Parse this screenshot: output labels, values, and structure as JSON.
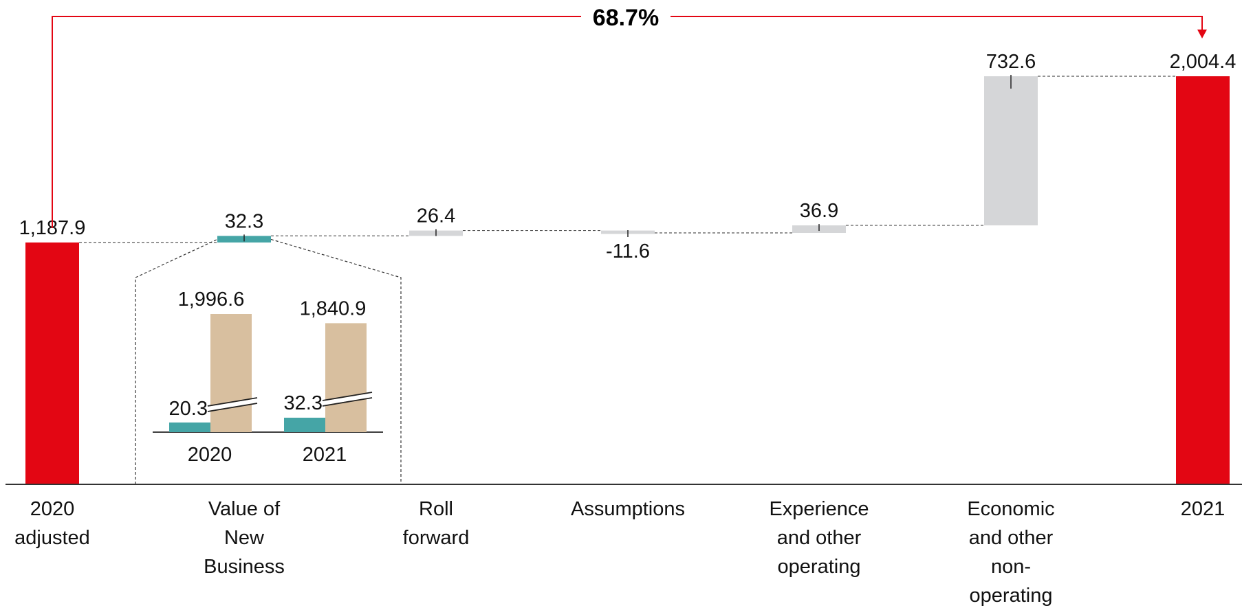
{
  "chart_data": {
    "type": "waterfall",
    "title": "",
    "change_label": "68.7%",
    "categories": [
      {
        "key": "start",
        "lines": [
          "2020",
          "adjusted"
        ],
        "kind": "total",
        "value": 1187.9,
        "label": "1,187.9"
      },
      {
        "key": "vnb",
        "lines": [
          "Value of",
          "New",
          "Business"
        ],
        "kind": "delta",
        "value": 32.3,
        "label": "32.3"
      },
      {
        "key": "roll",
        "lines": [
          "Roll",
          "forward"
        ],
        "kind": "delta",
        "value": 26.4,
        "label": "26.4"
      },
      {
        "key": "assump",
        "lines": [
          "Assumptions"
        ],
        "kind": "delta",
        "value": -11.6,
        "label": "-11.6"
      },
      {
        "key": "exp",
        "lines": [
          "Experience",
          "and other",
          "operating"
        ],
        "kind": "delta",
        "value": 36.9,
        "label": "36.9"
      },
      {
        "key": "econ",
        "lines": [
          "Economic",
          "and other",
          "non-",
          "operating"
        ],
        "kind": "delta",
        "value": 732.6,
        "label": "732.6"
      },
      {
        "key": "end",
        "lines": [
          "2021"
        ],
        "kind": "total",
        "value": 2004.4,
        "label": "2,004.4"
      }
    ],
    "ylim": [
      0,
      2004.4
    ],
    "inset": {
      "categories": [
        "2020",
        "2021"
      ],
      "series": [
        {
          "values": [
            20.3,
            32.3
          ],
          "labels": [
            "20.3",
            "32.3"
          ]
        },
        {
          "values": [
            1996.6,
            1840.9
          ],
          "labels": [
            "1,996.6",
            "1,840.9"
          ]
        }
      ]
    }
  },
  "colors": {
    "total": "#e30613",
    "vnb": "#45a5a6",
    "delta": "#d5d6d8",
    "inset_secondary": "#d8bf9f",
    "vnb_text": "#45a5a6",
    "arrow": "#e30613",
    "axis": "#333333"
  }
}
